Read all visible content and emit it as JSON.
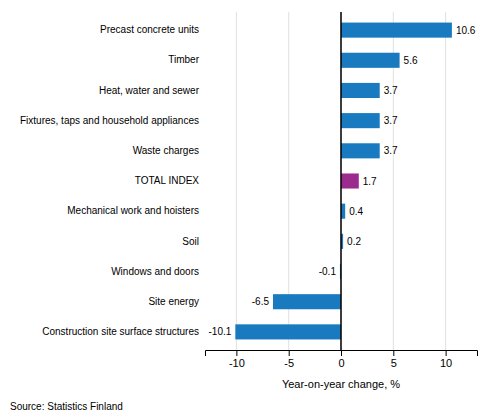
{
  "chart_data": {
    "type": "bar",
    "orientation": "horizontal",
    "categories": [
      "Construction site surface structures",
      "Site energy",
      "Windows and doors",
      "Soil",
      "Mechanical work and hoisters",
      "TOTAL INDEX",
      "Waste charges",
      "Fixtures, taps and household appliances",
      "Heat, water and sewer",
      "Timber",
      "Precast concrete units"
    ],
    "values": [
      -10.1,
      -6.5,
      -0.1,
      0.2,
      0.4,
      1.7,
      3.7,
      3.7,
      3.7,
      5.6,
      10.6
    ],
    "colors": [
      "#1a7abf",
      "#1a7abf",
      "#1a7abf",
      "#1a7abf",
      "#1a7abf",
      "#9b2c8e",
      "#1a7abf",
      "#1a7abf",
      "#1a7abf",
      "#1a7abf",
      "#1a7abf"
    ],
    "xlabel": "Year-on-year change, %",
    "xlim": [
      -13,
      13
    ],
    "xticks": [
      -10,
      -5,
      0,
      5,
      10
    ],
    "grid": true,
    "data_labels": true,
    "annotations": [
      "Source: Statistics Finland"
    ]
  }
}
